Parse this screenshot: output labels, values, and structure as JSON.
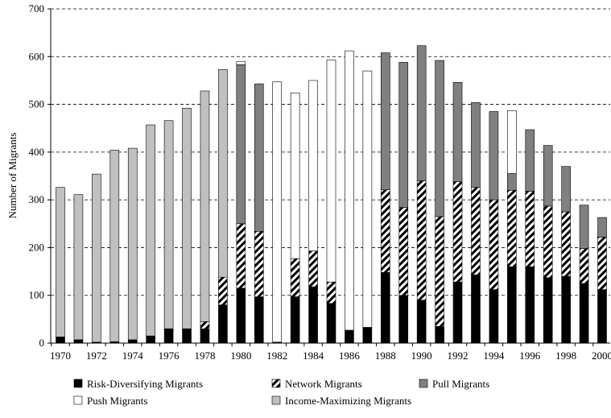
{
  "chart_data": {
    "type": "stacked_bar",
    "y_label": "Number of Migrants",
    "categories": [
      "1970",
      null,
      "1972",
      null,
      "1974",
      null,
      "1976",
      null,
      "1978",
      null,
      "1980",
      null,
      "1982",
      null,
      "1984",
      null,
      "1986",
      null,
      "1988",
      null,
      "1990",
      null,
      "1992",
      null,
      "1994",
      null,
      "1996",
      null,
      "1998",
      null,
      "2000"
    ],
    "ylim": [
      0,
      700
    ],
    "yticks": [
      0,
      100,
      200,
      300,
      400,
      500,
      600,
      700
    ],
    "grid": true,
    "series": [
      {
        "name": "Risk-Diversifying Migrants",
        "color": "#000000",
        "values": [
          13,
          7,
          2,
          3,
          7,
          15,
          30,
          30,
          30,
          80,
          115,
          97,
          2,
          97,
          118,
          83,
          27,
          33,
          148,
          100,
          90,
          35,
          128,
          143,
          112,
          160,
          160,
          137,
          140,
          125,
          112
        ]
      },
      {
        "name": "Network Migrants",
        "color": "#000000",
        "pattern": "hatch",
        "values": [
          0,
          0,
          0,
          0,
          0,
          0,
          0,
          0,
          15,
          58,
          135,
          137,
          0,
          80,
          75,
          45,
          0,
          0,
          173,
          184,
          250,
          230,
          210,
          183,
          188,
          160,
          158,
          150,
          135,
          73,
          110
        ]
      },
      {
        "name": "Pull Migrants",
        "color": "#808080",
        "values": [
          0,
          0,
          0,
          0,
          0,
          0,
          0,
          0,
          0,
          0,
          333,
          309,
          0,
          0,
          0,
          0,
          0,
          0,
          287,
          304,
          283,
          327,
          208,
          178,
          185,
          35,
          129,
          127,
          95,
          91,
          41
        ]
      },
      {
        "name": "Push Migrants",
        "color": "#ffffff",
        "values": [
          0,
          0,
          0,
          0,
          0,
          0,
          0,
          0,
          0,
          0,
          7,
          0,
          545,
          347,
          357,
          465,
          585,
          537,
          0,
          0,
          0,
          0,
          0,
          0,
          0,
          132,
          0,
          0,
          0,
          0,
          0
        ]
      },
      {
        "name": "Income-Maximizing Migrants",
        "color": "#c0c0c0",
        "values": [
          313,
          304,
          352,
          401,
          401,
          442,
          436,
          462,
          483,
          435,
          0,
          0,
          0,
          0,
          0,
          0,
          0,
          0,
          0,
          0,
          0,
          0,
          0,
          0,
          0,
          0,
          0,
          0,
          0,
          0,
          0
        ]
      }
    ]
  }
}
